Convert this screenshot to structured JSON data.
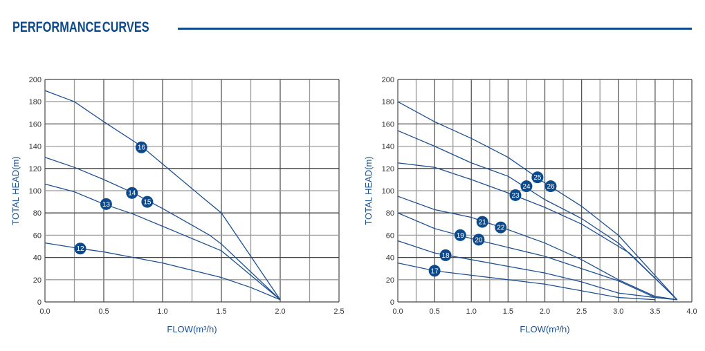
{
  "header": {
    "title": "PERFORMANCE CURVES"
  },
  "chart_data": [
    {
      "type": "line",
      "title": "",
      "xlabel": "FLOW(m³/h)",
      "ylabel": "TOTAL HEAD(m)",
      "xlim": [
        0,
        2.5
      ],
      "ylim": [
        0,
        200
      ],
      "grid": true,
      "xticks": [
        "0.0",
        "0.5",
        "1.0",
        "1.5",
        "2.0",
        "2.5"
      ],
      "yticks": [
        "0",
        "20",
        "40",
        "60",
        "80",
        "100",
        "120",
        "140",
        "160",
        "180",
        "200"
      ],
      "series": [
        {
          "name": "16",
          "points": [
            [
              0,
              190
            ],
            [
              0.25,
              180
            ],
            [
              0.5,
              162
            ],
            [
              0.82,
              140
            ],
            [
              1.0,
              124
            ],
            [
              1.35,
              93
            ],
            [
              1.5,
              80
            ],
            [
              2.0,
              2
            ]
          ],
          "labels": [
            {
              "text": "16",
              "x": 0.82,
              "y": 139
            }
          ]
        },
        {
          "name": "14/15",
          "points": [
            [
              0,
              130
            ],
            [
              0.25,
              121
            ],
            [
              0.5,
              110
            ],
            [
              0.75,
              98
            ],
            [
              1.0,
              84
            ],
            [
              1.4,
              60
            ],
            [
              1.5,
              52
            ],
            [
              2.0,
              2
            ]
          ],
          "labels": [
            {
              "text": "14",
              "x": 0.74,
              "y": 98
            },
            {
              "text": "15",
              "x": 0.87,
              "y": 90
            }
          ]
        },
        {
          "name": "13",
          "points": [
            [
              0,
              106
            ],
            [
              0.25,
              99
            ],
            [
              0.5,
              88
            ],
            [
              0.75,
              79
            ],
            [
              1.0,
              68
            ],
            [
              1.5,
              46
            ],
            [
              2.0,
              2
            ]
          ],
          "labels": [
            {
              "text": "13",
              "x": 0.52,
              "y": 88
            }
          ]
        },
        {
          "name": "12",
          "points": [
            [
              0,
              53
            ],
            [
              0.3,
              48
            ],
            [
              0.5,
              45
            ],
            [
              0.75,
              40
            ],
            [
              1.0,
              35
            ],
            [
              1.5,
              22
            ],
            [
              1.75,
              13
            ],
            [
              2.0,
              2
            ]
          ],
          "labels": [
            {
              "text": "12",
              "x": 0.3,
              "y": 48
            }
          ]
        }
      ]
    },
    {
      "type": "line",
      "title": "",
      "xlabel": "FLOW(m³/h)",
      "ylabel": "TOTAL HEAD(m)",
      "xlim": [
        0,
        4.0
      ],
      "ylim": [
        0,
        200
      ],
      "grid": true,
      "xticks": [
        "0.0",
        "0.5",
        "1.0",
        "1.5",
        "2.0",
        "2.5",
        "3.0",
        "3.5",
        "4.0"
      ],
      "yticks": [
        "0",
        "20",
        "40",
        "60",
        "80",
        "100",
        "120",
        "140",
        "160",
        "180",
        "200"
      ],
      "series": [
        {
          "name": "25/26",
          "points": [
            [
              0,
              180
            ],
            [
              0.5,
              162
            ],
            [
              1.0,
              147
            ],
            [
              1.5,
              130
            ],
            [
              2.0,
              107
            ],
            [
              2.5,
              86
            ],
            [
              3.0,
              60
            ],
            [
              3.8,
              2
            ]
          ],
          "labels": [
            {
              "text": "25",
              "x": 1.9,
              "y": 112
            },
            {
              "text": "26",
              "x": 2.08,
              "y": 104
            }
          ]
        },
        {
          "name": "24",
          "points": [
            [
              0,
              154
            ],
            [
              0.5,
              140
            ],
            [
              1.0,
              125
            ],
            [
              1.5,
              113
            ],
            [
              2.0,
              92
            ],
            [
              2.5,
              75
            ],
            [
              3.0,
              53
            ],
            [
              3.8,
              2
            ]
          ],
          "labels": [
            {
              "text": "24",
              "x": 1.75,
              "y": 104
            }
          ]
        },
        {
          "name": "23",
          "points": [
            [
              0,
              125
            ],
            [
              0.5,
              121
            ],
            [
              1.0,
              110
            ],
            [
              1.5,
              98
            ],
            [
              2.0,
              85
            ],
            [
              2.5,
              70
            ],
            [
              3.15,
              44
            ],
            [
              3.8,
              2
            ]
          ],
          "labels": [
            {
              "text": "23",
              "x": 1.6,
              "y": 96
            }
          ]
        },
        {
          "name": "21/22",
          "points": [
            [
              0,
              95
            ],
            [
              0.5,
              83
            ],
            [
              1.0,
              76
            ],
            [
              1.5,
              65
            ],
            [
              2.0,
              53
            ],
            [
              2.5,
              38
            ],
            [
              3.0,
              20
            ],
            [
              3.5,
              5
            ],
            [
              3.8,
              2
            ]
          ],
          "labels": [
            {
              "text": "21",
              "x": 1.15,
              "y": 72
            },
            {
              "text": "22",
              "x": 1.4,
              "y": 67
            }
          ]
        },
        {
          "name": "19/20",
          "points": [
            [
              0,
              80
            ],
            [
              0.5,
              66
            ],
            [
              1.0,
              57
            ],
            [
              1.5,
              49
            ],
            [
              2.0,
              41
            ],
            [
              2.5,
              30
            ],
            [
              3.0,
              19
            ],
            [
              3.5,
              4
            ],
            [
              3.8,
              2
            ]
          ],
          "labels": [
            {
              "text": "19",
              "x": 0.85,
              "y": 60
            },
            {
              "text": "20",
              "x": 1.1,
              "y": 56
            }
          ]
        },
        {
          "name": "18",
          "points": [
            [
              0,
              55
            ],
            [
              0.5,
              44
            ],
            [
              1.0,
              38
            ],
            [
              1.5,
              32
            ],
            [
              2.0,
              26
            ],
            [
              2.5,
              18
            ],
            [
              3.0,
              8
            ],
            [
              3.5,
              4
            ],
            [
              3.8,
              2
            ]
          ],
          "labels": [
            {
              "text": "18",
              "x": 0.65,
              "y": 42
            }
          ]
        },
        {
          "name": "17",
          "points": [
            [
              0,
              35
            ],
            [
              0.5,
              28
            ],
            [
              1.0,
              24
            ],
            [
              1.5,
              20
            ],
            [
              2.0,
              16
            ],
            [
              2.5,
              10
            ],
            [
              3.0,
              4
            ],
            [
              3.5,
              2
            ]
          ],
          "labels": [
            {
              "text": "17",
              "x": 0.5,
              "y": 28
            }
          ]
        }
      ]
    }
  ],
  "colors": {
    "brand": "#0d4a8c",
    "line": "#1d4f91",
    "grid": "#888888"
  }
}
